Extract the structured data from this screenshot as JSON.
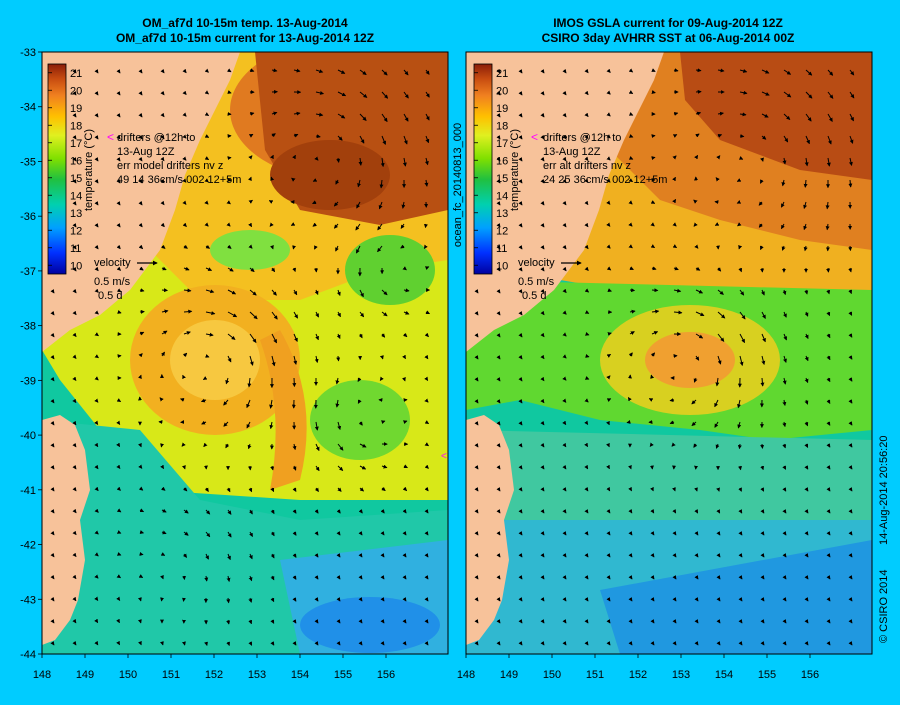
{
  "colors": {
    "background": "#00ccff",
    "land": "#f7c29a",
    "ticks": "#000000",
    "drifter_marker": "#ff00ff"
  },
  "left_panel": {
    "title_line1": "OM_af7d 10-15m temp. 13-Aug-2014",
    "title_line2": "OM_af7d 10-15m current for 13-Aug-2014 12Z",
    "drifter_info": {
      "line1": "drifters @12h to",
      "line2": "13-Aug 12Z",
      "line3": "err model drifters nv z",
      "line4": "49   14    36cm/s 002 12+5m"
    }
  },
  "right_panel": {
    "title_line1": "IMOS GSLA current for 09-Aug-2014 12Z",
    "title_line2": "CSIRO 3day AVHRR SST at 06-Aug-2014 00Z",
    "drifter_info": {
      "line1": "drifters @12h to",
      "line2": "13-Aug 12Z",
      "line3": "err alt drifters nv z",
      "line4": "24 25 36cm/s 002 12+5m"
    }
  },
  "colorbar": {
    "label": "temperature (°C)",
    "ticks": [
      21,
      20,
      19,
      18,
      17,
      16,
      15,
      14,
      13,
      12,
      11,
      10
    ],
    "min": 9.5,
    "max": 21.5
  },
  "velocity_legend": {
    "title": "velocity",
    "speed": "0.5 m/s",
    "duration": "0.5 d"
  },
  "axes": {
    "lat_labels": [
      "-33",
      "-34",
      "-35",
      "-36",
      "-37",
      "-38",
      "-39",
      "-40",
      "-41",
      "-42",
      "-43",
      "-44"
    ],
    "lon_labels": [
      "148",
      "149",
      "150",
      "151",
      "152",
      "153",
      "154",
      "155",
      "156"
    ]
  },
  "side_label": "ocean_fc_20140813_000",
  "footer": {
    "credit": "© CSIRO 2014",
    "timestamp": "14-Aug-2014 20:56:20"
  }
}
